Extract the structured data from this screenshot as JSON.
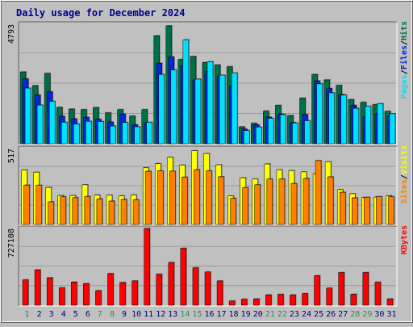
{
  "chart_data": {
    "type": "bar",
    "title": "Daily usage for December 2024",
    "categories": [
      "1",
      "2",
      "3",
      "4",
      "5",
      "6",
      "7",
      "8",
      "9",
      "10",
      "11",
      "12",
      "13",
      "14",
      "15",
      "16",
      "17",
      "18",
      "19",
      "20",
      "21",
      "22",
      "23",
      "24",
      "25",
      "26",
      "27",
      "28",
      "29",
      "30",
      "31"
    ],
    "weekend_days": [
      "1",
      "7",
      "8",
      "14",
      "15",
      "21",
      "22",
      "28",
      "29"
    ],
    "panels": [
      {
        "id": "hits",
        "ymax": 4793,
        "ymax_label": "4793",
        "legend": [
          "Pages",
          "Files",
          "Hits"
        ],
        "series": [
          {
            "name": "Hits",
            "color": "#006f45",
            "values": [
              2880,
              2330,
              2820,
              1460,
              1390,
              1370,
              1450,
              1240,
              1370,
              1110,
              1370,
              4330,
              4730,
              3380,
              3500,
              3260,
              3160,
              3090,
              680,
              820,
              1310,
              1540,
              1130,
              1830,
              2780,
              2560,
              2340,
              1770,
              1660,
              1570,
              1300
            ]
          },
          {
            "name": "Files",
            "color": "#0028d8",
            "values": [
              2600,
              1950,
              2080,
              1100,
              1000,
              1060,
              980,
              870,
              1190,
              760,
              840,
              3230,
              3480,
              3130,
              2560,
              2890,
              2700,
              2310,
              590,
              760,
              1070,
              1190,
              850,
              1170,
              2520,
              2220,
              1970,
              1540,
              1070,
              1200,
              1100
            ]
          },
          {
            "name": "Pages",
            "color": "#00e0ff",
            "values": [
              2230,
              1550,
              1700,
              860,
              790,
              900,
              890,
              710,
              850,
              680,
              860,
              2780,
              2960,
              4170,
              2590,
              3290,
              2750,
              2840,
              530,
              670,
              1020,
              1170,
              830,
              920,
              2400,
              2040,
              1950,
              1420,
              1500,
              1610,
              1200
            ]
          }
        ]
      },
      {
        "id": "visits",
        "ymax": 517,
        "ymax_label": "517",
        "legend": [
          "Sites",
          "Visits"
        ],
        "series": [
          {
            "name": "Visits",
            "color": "#ffff00",
            "values": [
              370,
              356,
              252,
              197,
              197,
              270,
              200,
              199,
              194,
              201,
              386,
              414,
              457,
              404,
              502,
              483,
              406,
              194,
              318,
              309,
              412,
              372,
              367,
              358,
              346,
              427,
              237,
              209,
              183,
              186,
              195
            ]
          },
          {
            "name": "Sites",
            "color": "#ff8000",
            "values": [
              268,
              267,
              154,
              188,
              182,
              191,
              174,
              159,
              170,
              168,
              362,
              365,
              363,
              322,
              373,
              365,
              325,
              178,
              251,
              270,
              309,
              309,
              279,
              313,
              435,
              324,
              219,
              181,
              185,
              190,
              189
            ]
          }
        ]
      },
      {
        "id": "kbytes",
        "ymax": 727108,
        "ymax_label": "727108",
        "legend": [
          "KBytes"
        ],
        "series": [
          {
            "name": "KBytes",
            "color": "#ff0000",
            "values": [
              240000,
              335000,
              260000,
              165000,
              220000,
              205000,
              138000,
              300000,
              215000,
              230000,
              727108,
              294000,
              405000,
              540000,
              355000,
              315000,
              230000,
              40000,
              57000,
              60000,
              98000,
              103000,
              98000,
              110000,
              280000,
              162000,
              310000,
              104000,
              310000,
              218000,
              60000
            ]
          }
        ]
      }
    ]
  },
  "colors": {
    "background": "#c0c0c0",
    "plot_bg": "#c0c0c0",
    "grid": "#9b9b9b",
    "title": "#00008b",
    "day_label": "#000080",
    "weekend_label": "#2e8b57",
    "pages": "#00e0ff",
    "files": "#0028d8",
    "hits": "#006f45",
    "sites": "#ff8000",
    "visits": "#ffff00",
    "kbytes": "#ff0000"
  }
}
